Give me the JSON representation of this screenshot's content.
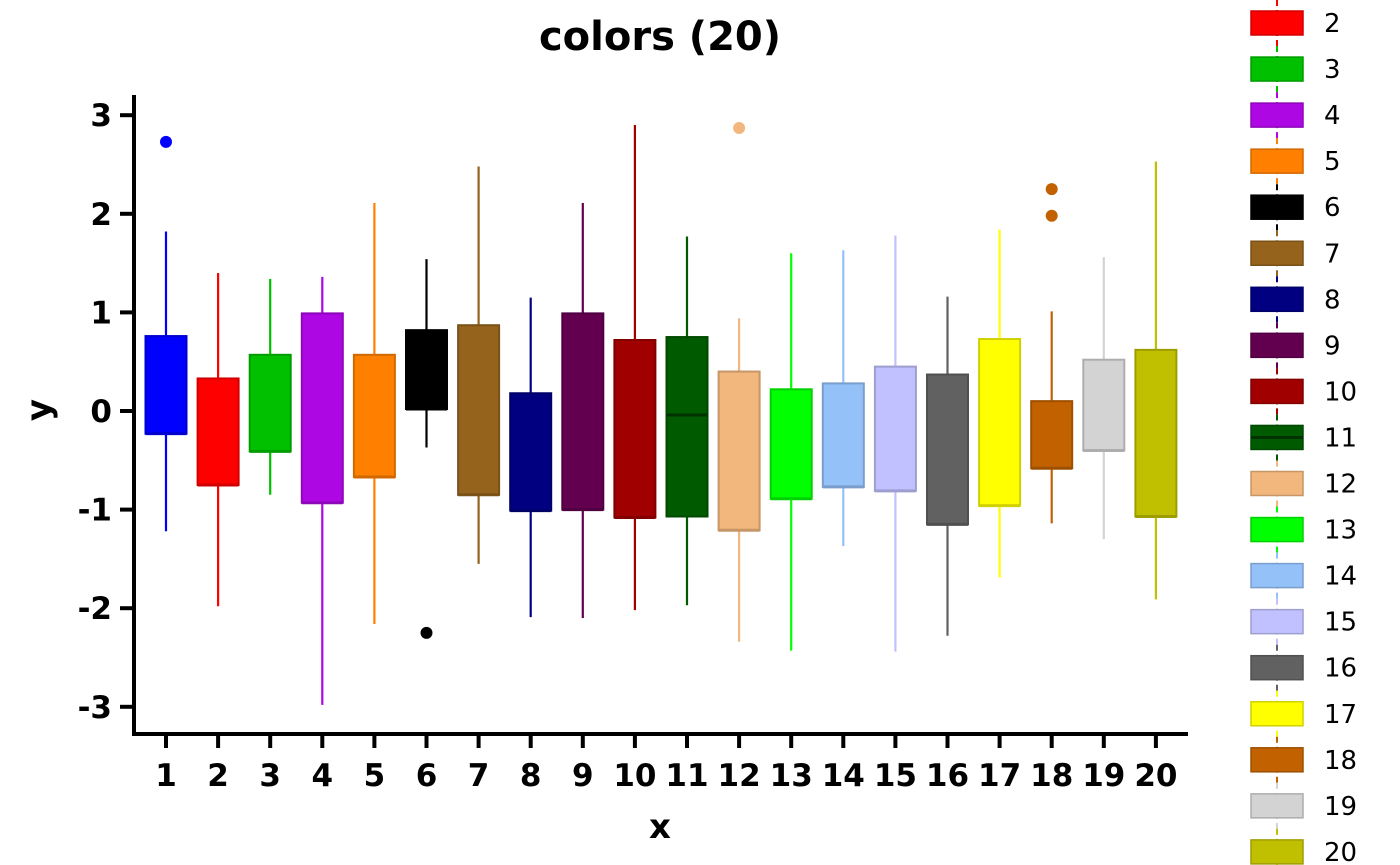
{
  "chart_data": {
    "type": "boxplot",
    "title": "colors (20)",
    "xlabel": "x",
    "ylabel": "y",
    "ylim": [
      -3.25,
      3.2
    ],
    "yticks": [
      3,
      2,
      1,
      0,
      -1,
      -2,
      -3
    ],
    "ytick_labels": [
      "3",
      "2",
      "1",
      "0",
      "-1",
      "-2",
      "-3"
    ],
    "grid": false,
    "legend_position": "right",
    "legend_labels_visible": [
      "2",
      "3",
      "4",
      "5",
      "6",
      "7",
      "8",
      "9",
      "10",
      "11",
      "12",
      "13",
      "14",
      "15",
      "16",
      "17",
      "18",
      "19",
      "20"
    ],
    "categories": [
      "1",
      "2",
      "3",
      "4",
      "5",
      "6",
      "7",
      "8",
      "9",
      "10",
      "11",
      "12",
      "13",
      "14",
      "15",
      "16",
      "17",
      "18",
      "19",
      "20"
    ],
    "boxes": [
      {
        "label": "1",
        "color": "#0000FF",
        "q1": -0.23,
        "median": -0.23,
        "q3": 0.76,
        "whisker_low": -1.22,
        "whisker_high": 1.82,
        "outliers": [
          2.73
        ]
      },
      {
        "label": "2",
        "color": "#FF0000",
        "q1": -0.75,
        "median": -0.75,
        "q3": 0.33,
        "whisker_low": -1.98,
        "whisker_high": 1.4,
        "outliers": []
      },
      {
        "label": "3",
        "color": "#00C000",
        "q1": -0.41,
        "median": -0.41,
        "q3": 0.57,
        "whisker_low": -0.85,
        "whisker_high": 1.34,
        "outliers": []
      },
      {
        "label": "4",
        "color": "#AD07E3",
        "q1": -0.93,
        "median": -0.93,
        "q3": 0.99,
        "whisker_low": -2.98,
        "whisker_high": 1.36,
        "outliers": []
      },
      {
        "label": "5",
        "color": "#FF8000",
        "q1": -0.67,
        "median": -0.67,
        "q3": 0.57,
        "whisker_low": -2.16,
        "whisker_high": 2.11,
        "outliers": []
      },
      {
        "label": "6",
        "color": "#000000",
        "q1": 0.02,
        "median": 0.02,
        "q3": 0.82,
        "whisker_low": -0.37,
        "whisker_high": 1.54,
        "outliers": [
          -2.25
        ]
      },
      {
        "label": "7",
        "color": "#95631C",
        "q1": -0.85,
        "median": -0.85,
        "q3": 0.87,
        "whisker_low": -1.55,
        "whisker_high": 2.48,
        "outliers": []
      },
      {
        "label": "8",
        "color": "#000080",
        "q1": -1.01,
        "median": -1.01,
        "q3": 0.18,
        "whisker_low": -2.09,
        "whisker_high": 1.15,
        "outliers": []
      },
      {
        "label": "9",
        "color": "#62004F",
        "q1": -1.0,
        "median": -1.0,
        "q3": 0.99,
        "whisker_low": -2.1,
        "whisker_high": 2.11,
        "outliers": []
      },
      {
        "label": "10",
        "color": "#A00000",
        "q1": -1.08,
        "median": -1.08,
        "q3": 0.72,
        "whisker_low": -2.02,
        "whisker_high": 2.9,
        "outliers": []
      },
      {
        "label": "11",
        "color": "#005A00",
        "q1": -1.07,
        "median": -0.04,
        "q3": 0.75,
        "whisker_low": -1.97,
        "whisker_high": 1.77,
        "outliers": []
      },
      {
        "label": "12",
        "color": "#F2B77D",
        "q1": -1.21,
        "median": -1.21,
        "q3": 0.4,
        "whisker_low": -2.34,
        "whisker_high": 0.94,
        "outliers": [
          2.87
        ]
      },
      {
        "label": "13",
        "color": "#00FF00",
        "q1": -0.89,
        "median": -0.89,
        "q3": 0.22,
        "whisker_low": -2.43,
        "whisker_high": 1.6,
        "outliers": []
      },
      {
        "label": "14",
        "color": "#95C1F9",
        "q1": -0.77,
        "median": -0.77,
        "q3": 0.28,
        "whisker_low": -1.37,
        "whisker_high": 1.63,
        "outliers": []
      },
      {
        "label": "15",
        "color": "#C1C1FF",
        "q1": -0.81,
        "median": -0.81,
        "q3": 0.45,
        "whisker_low": -2.44,
        "whisker_high": 1.78,
        "outliers": []
      },
      {
        "label": "16",
        "color": "#616161",
        "q1": -1.15,
        "median": -1.15,
        "q3": 0.37,
        "whisker_low": -2.28,
        "whisker_high": 1.16,
        "outliers": []
      },
      {
        "label": "17",
        "color": "#FFFF00",
        "q1": -0.96,
        "median": -0.96,
        "q3": 0.73,
        "whisker_low": -1.69,
        "whisker_high": 1.84,
        "outliers": []
      },
      {
        "label": "18",
        "color": "#C16100",
        "q1": -0.58,
        "median": -0.58,
        "q3": 0.1,
        "whisker_low": -1.14,
        "whisker_high": 1.01,
        "outliers": [
          2.25,
          1.98
        ]
      },
      {
        "label": "19",
        "color": "#D3D3D3",
        "q1": -0.4,
        "median": -0.4,
        "q3": 0.52,
        "whisker_low": -1.3,
        "whisker_high": 1.56,
        "outliers": []
      },
      {
        "label": "20",
        "color": "#C0C000",
        "q1": -1.07,
        "median": -1.07,
        "q3": 0.62,
        "whisker_low": -1.91,
        "whisker_high": 2.53,
        "outliers": []
      }
    ]
  }
}
